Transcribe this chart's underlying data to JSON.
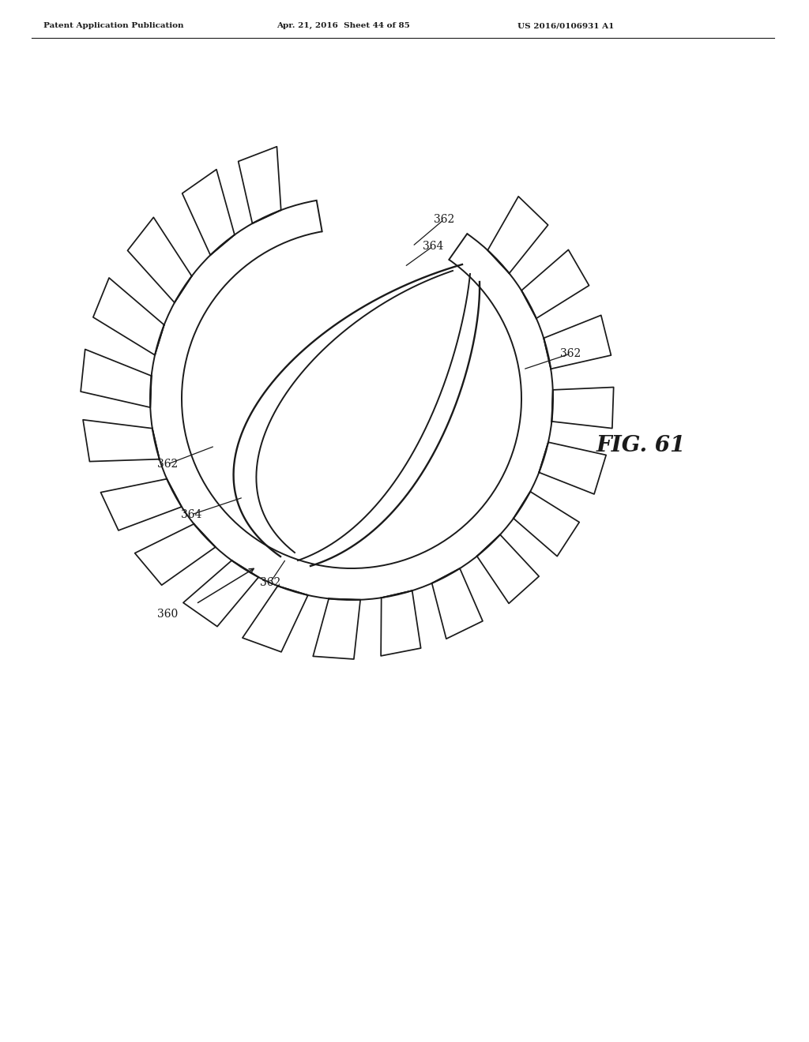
{
  "bg_color": "#ffffff",
  "line_color": "#1a1a1a",
  "line_width": 1.4,
  "header_left": "Patent Application Publication",
  "header_mid": "Apr. 21, 2016  Sheet 44 of 85",
  "header_right": "US 2016/0106931 A1",
  "fig_label": "FIG. 61",
  "canvas_xlim": [
    0,
    10.24
  ],
  "canvas_ylim": [
    0,
    13.2
  ]
}
